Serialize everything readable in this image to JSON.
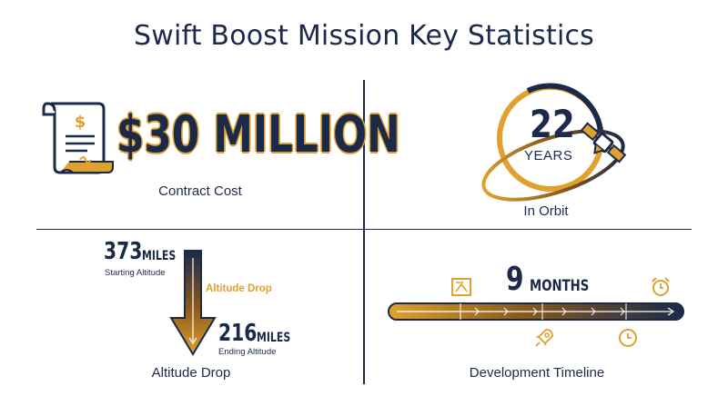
{
  "title": "Swift Boost Mission Key Statistics",
  "cost": {
    "value": "$30 MILLION",
    "caption": "Contract Cost"
  },
  "orbit": {
    "number": "22",
    "unit": "YEARS",
    "caption": "In Orbit"
  },
  "altitude": {
    "start_value": "373",
    "start_unit": "MILES",
    "start_label": "Starting Altitude",
    "drop_label": "Altitude Drop",
    "end_value": "216",
    "end_unit": "MILES",
    "end_label": "Ending Altitude",
    "caption": "Altitude Drop"
  },
  "timeline": {
    "number": "9",
    "unit": "MONTHS",
    "caption": "Development Timeline"
  },
  "colors": {
    "navy": "#1b2a4a",
    "orange": "#e0a12f",
    "brown": "#8a5a1a"
  },
  "icons": [
    "dollar-document-icon",
    "satellite-icon",
    "blueprint-icon",
    "rocket-icon",
    "clock-icon",
    "alarm-clock-icon"
  ]
}
